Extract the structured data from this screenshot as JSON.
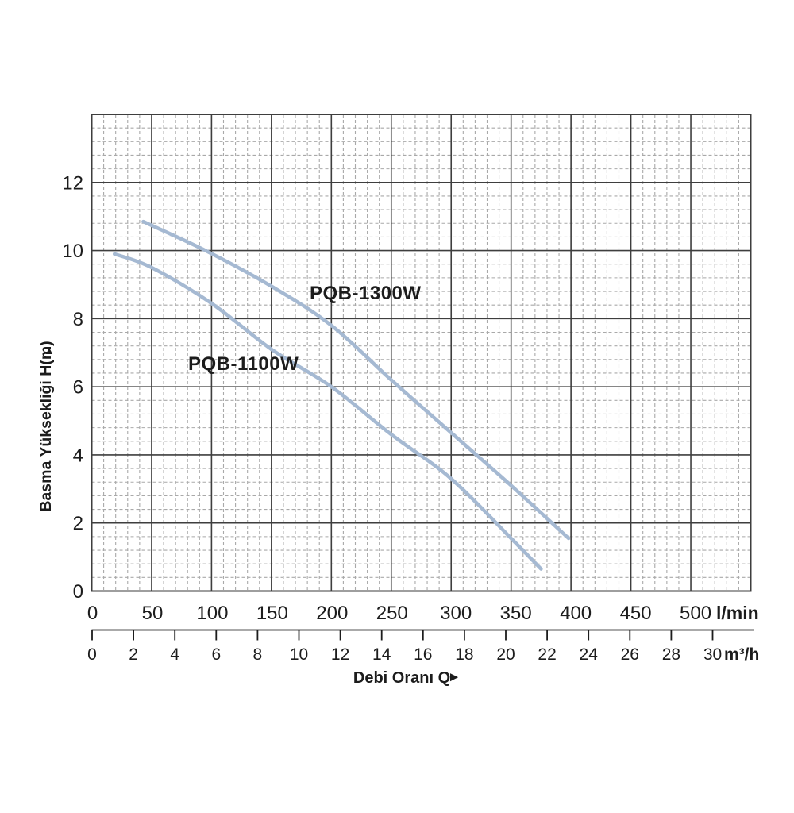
{
  "page": {
    "background": "#ffffff"
  },
  "icons": {
    "y_axis_arrow": "▲",
    "x_axis_arrow": "►"
  },
  "chart_data": {
    "type": "line",
    "title": "",
    "ylabel": "Basma Yüksekliği H(m)",
    "xlabel": "Debi Oranı Q",
    "x_axis_primary": {
      "unit": "l/min",
      "ticks": [
        0,
        50,
        100,
        150,
        200,
        250,
        300,
        350,
        400,
        450,
        500
      ],
      "range": [
        0,
        550
      ]
    },
    "x_axis_secondary": {
      "unit": "m³/h",
      "ticks": [
        0,
        2,
        4,
        6,
        8,
        10,
        12,
        14,
        16,
        18,
        20,
        22,
        24,
        26,
        28,
        30
      ],
      "range": [
        0,
        32
      ]
    },
    "y_axis": {
      "ticks": [
        0,
        2,
        4,
        6,
        8,
        10,
        12
      ],
      "range": [
        0,
        14
      ]
    },
    "grid": {
      "major_step_x_lmin": 50,
      "minor_step_x_lmin": 10,
      "major_step_y_m": 2,
      "minor_step_y_m": 0.4,
      "grid_on": true
    },
    "legend_position": "inline-labels",
    "series": [
      {
        "name": "PQB-1300W",
        "line_color": "#a5b9d2",
        "label_color": "#0d7d8a",
        "points_lmin_m": [
          [
            43,
            10.85
          ],
          [
            95,
            10.0
          ],
          [
            150,
            8.95
          ],
          [
            200,
            7.8
          ],
          [
            250,
            6.2
          ],
          [
            300,
            4.65
          ],
          [
            350,
            3.1
          ],
          [
            398,
            1.55
          ]
        ]
      },
      {
        "name": "PQB-1100W",
        "line_color": "#a5b9d2",
        "label_color": "#0d7d8a",
        "points_lmin_m": [
          [
            19,
            9.9
          ],
          [
            50,
            9.5
          ],
          [
            100,
            8.45
          ],
          [
            150,
            7.1
          ],
          [
            200,
            6.0
          ],
          [
            250,
            4.6
          ],
          [
            300,
            3.3
          ],
          [
            350,
            1.55
          ],
          [
            375,
            0.65
          ]
        ]
      }
    ],
    "colors": {
      "grid_major": "#3e3e3e",
      "grid_minor": "#a9a9a9",
      "axis_text": "#1c1c1c"
    }
  }
}
